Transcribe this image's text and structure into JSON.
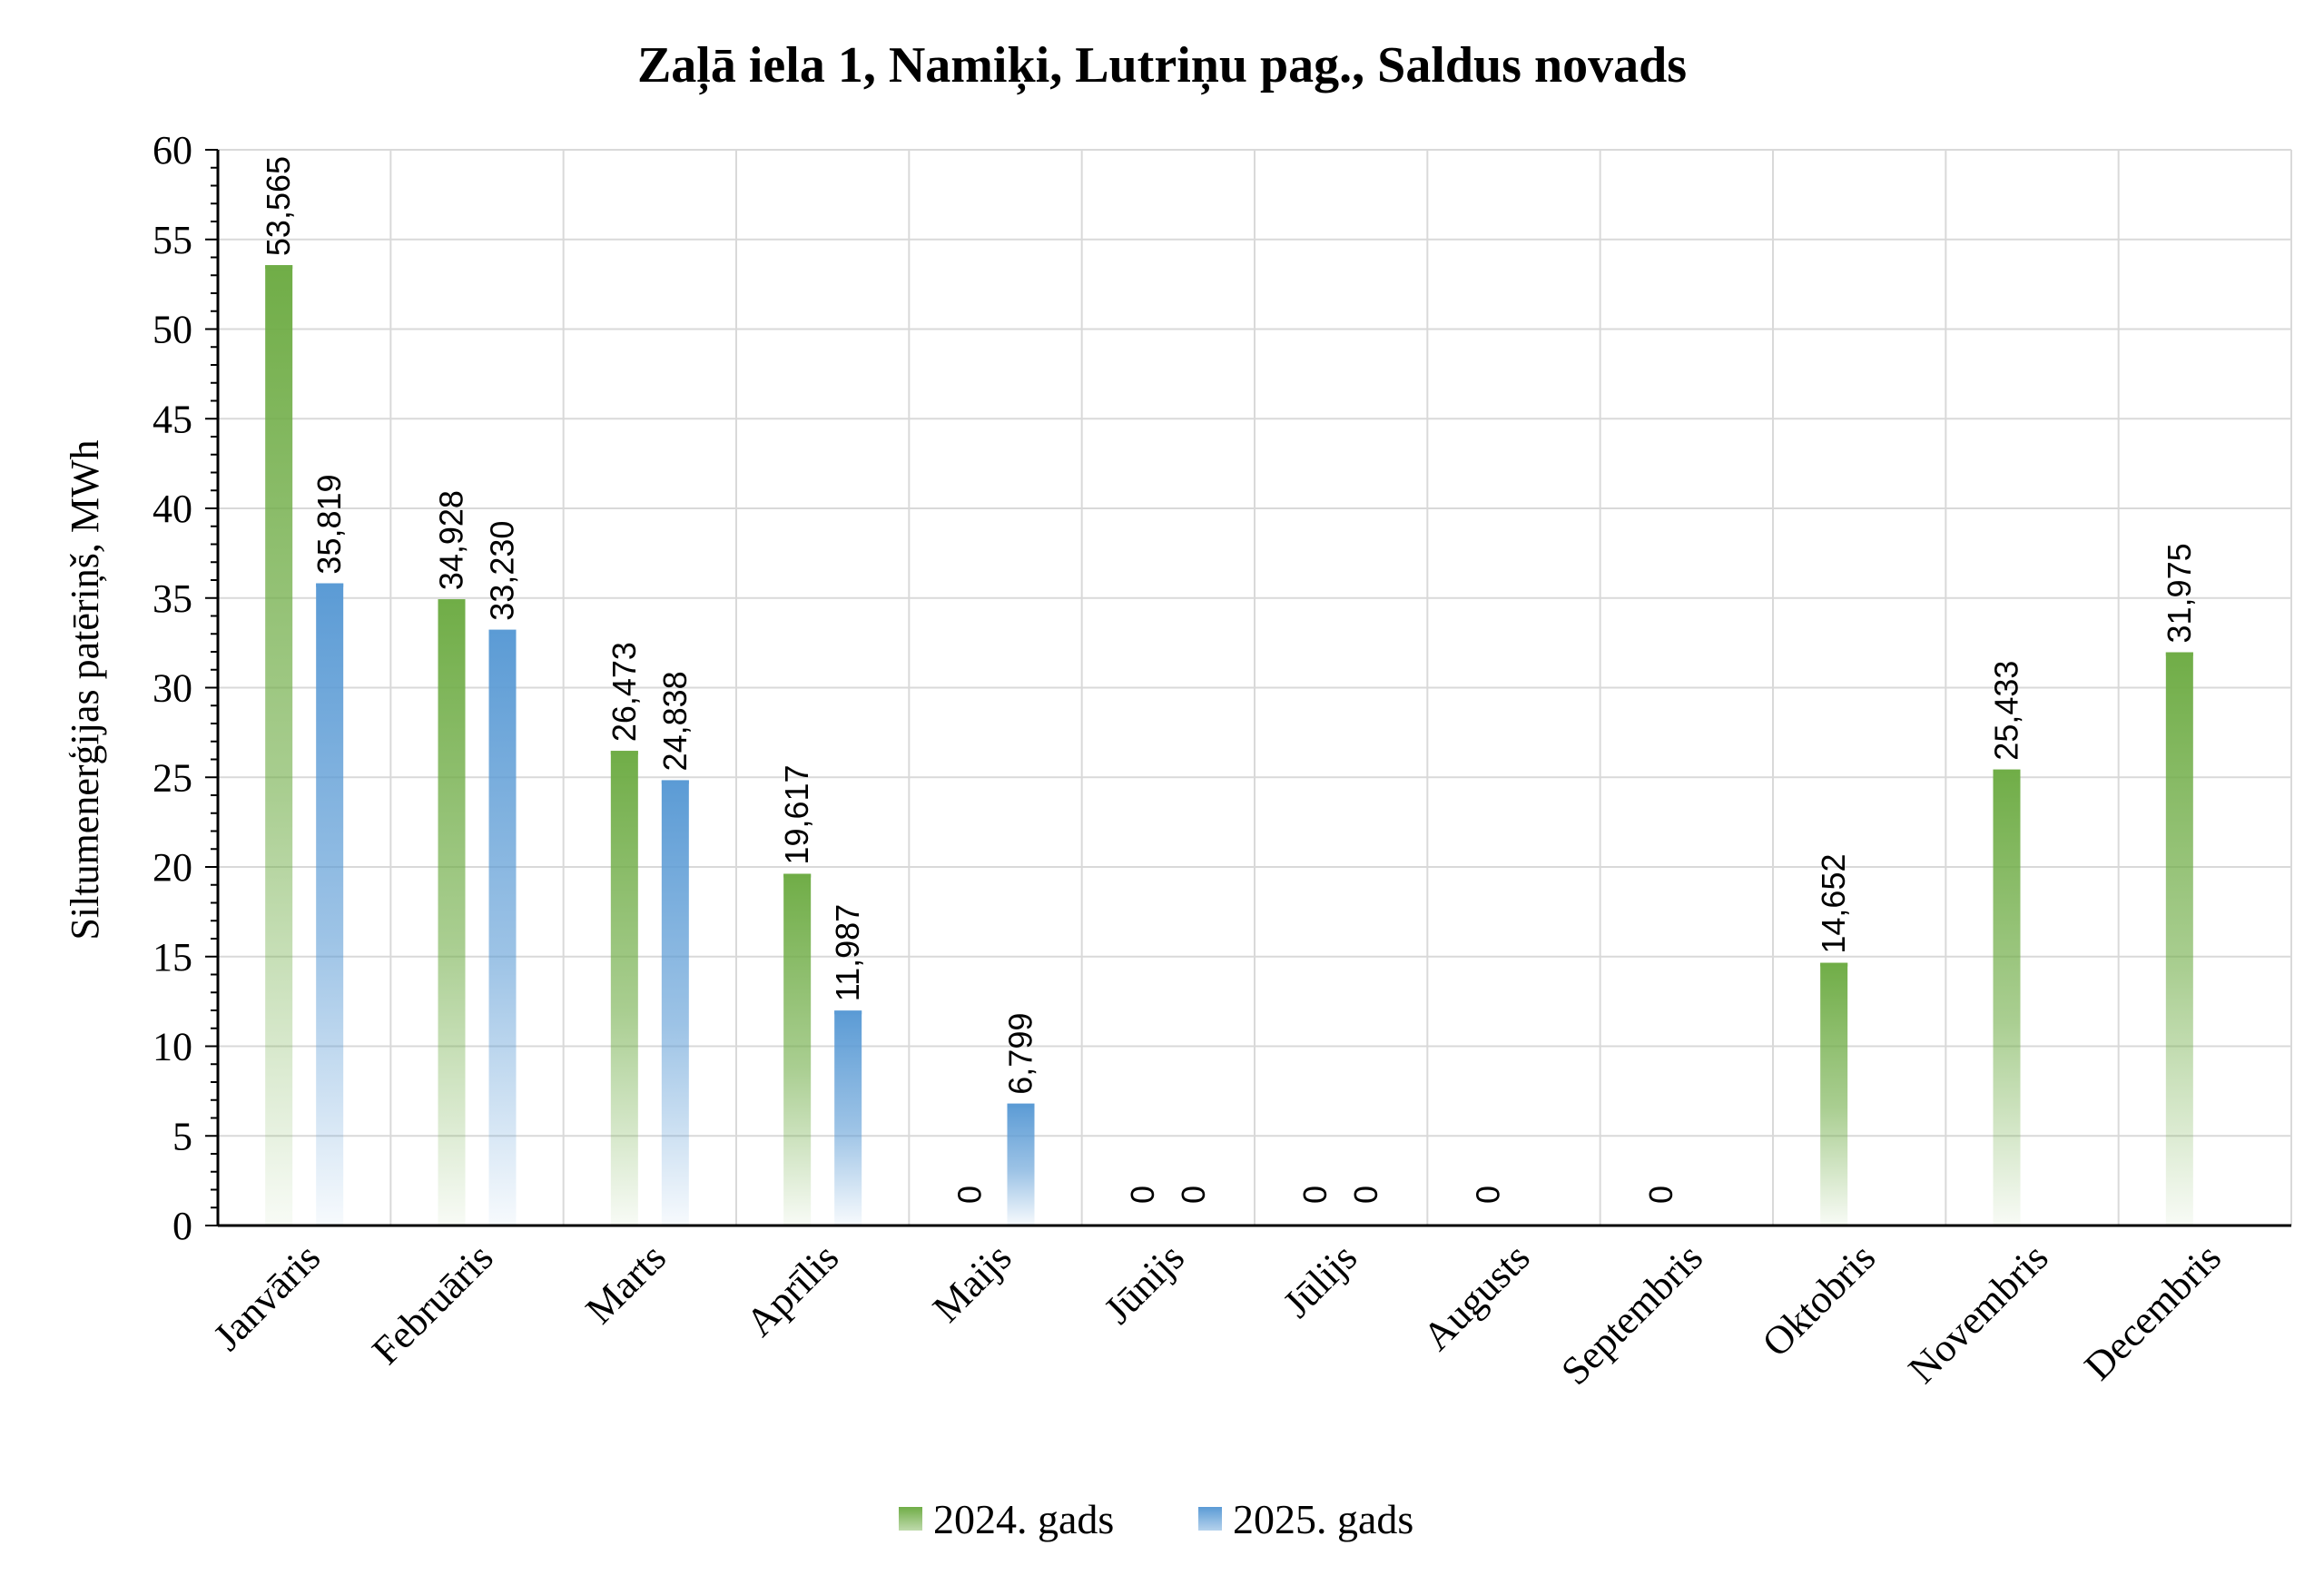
{
  "chart_data": {
    "type": "bar",
    "title": "Zaļā iela 1, Namiķi, Lutriņu pag., Saldus novads",
    "xlabel": "",
    "ylabel": "Siltumenerģijas patēriņš, MWh",
    "ylim": [
      0,
      60
    ],
    "yticks": [
      "0",
      "5",
      "10",
      "15",
      "20",
      "25",
      "30",
      "35",
      "40",
      "45",
      "50",
      "55",
      "60"
    ],
    "grid": true,
    "legend_position": "bottom",
    "categories": [
      "Janvāris",
      "Februāris",
      "Marts",
      "Aprīlis",
      "Maijs",
      "Jūnijs",
      "Jūlijs",
      "Augusts",
      "Septembris",
      "Oktobris",
      "Novembris",
      "Decembris"
    ],
    "series": [
      {
        "name": "2024. gads",
        "color": "#70ad47",
        "values": [
          53.565,
          34.928,
          26.473,
          19.617,
          0,
          0,
          0,
          0,
          0,
          14.652,
          25.433,
          31.975
        ],
        "labels": [
          "53,565",
          "34,928",
          "26,473",
          "19,617",
          "0",
          "0",
          "0",
          "0",
          "0",
          "14,652",
          "25,433",
          "31,975"
        ]
      },
      {
        "name": "2025. gads",
        "color": "#5b9bd5",
        "values": [
          35.819,
          33.23,
          24.838,
          11.987,
          6.799,
          0,
          0,
          null,
          null,
          null,
          null,
          null
        ],
        "labels": [
          "35,819",
          "33,230",
          "24,838",
          "11,987",
          "6,799",
          "0",
          "0",
          "",
          "",
          "",
          "",
          ""
        ]
      }
    ]
  }
}
